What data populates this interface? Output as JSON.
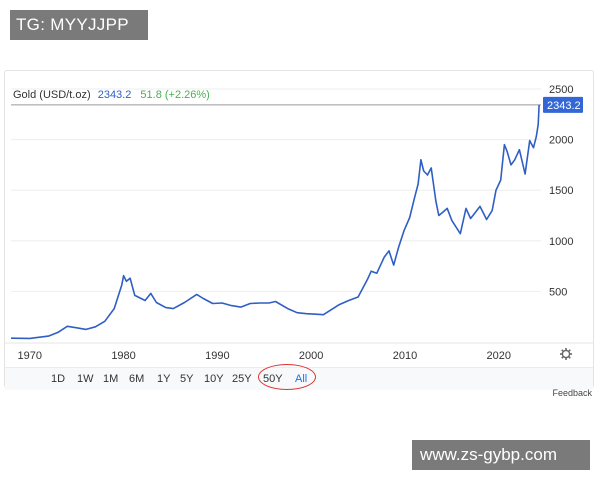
{
  "watermark_top": "TG: MYYJJPP",
  "watermark_bottom": "www.zs-gybp.com",
  "quote": {
    "name": "Gold (USD/t.oz)",
    "price": "2343.2",
    "change": "51.8 (+2.26%)"
  },
  "settings_icon": "gear-icon",
  "range_buttons": [
    "1D",
    "1W",
    "1M",
    "6M",
    "1Y",
    "5Y",
    "10Y",
    "25Y",
    "50Y",
    "All"
  ],
  "active_range": "All",
  "feedback_label": "Feedback",
  "colors": {
    "line": "#2f5fc4",
    "price_tag_bg": "#3367d6",
    "positive": "#4caf50",
    "highlight": "#dd3333"
  },
  "chart_data": {
    "type": "line",
    "title": "",
    "xlabel": "",
    "ylabel": "",
    "xlim": [
      1968,
      2024.5
    ],
    "ylim": [
      0,
      2500
    ],
    "x_ticks": [
      1970,
      1980,
      1990,
      2000,
      2010,
      2020
    ],
    "y_ticks": [
      500,
      1000,
      1500,
      2000,
      2500
    ],
    "y_axis_side": "right",
    "grid": "horizontal",
    "current_price_line": 2343.2,
    "current_price_label": "2343.2",
    "series": [
      {
        "x": [
          1968,
          1970,
          1972,
          1973,
          1974,
          1975,
          1976,
          1977,
          1978,
          1979,
          1979.8,
          1980.0,
          1980.3,
          1980.7,
          1981.2,
          1982.3,
          1982.9,
          1983.5,
          1984.5,
          1985.3,
          1986.5,
          1987.8,
          1988.5,
          1989.5,
          1990.5,
          1991.5,
          1992.5,
          1993.5,
          1994.5,
          1995.5,
          1996.2,
          1997.5,
          1998.5,
          1999.5,
          2000.5,
          2001.3,
          2002,
          2003,
          2004,
          2005,
          2006,
          2006.4,
          2007,
          2007.8,
          2008.3,
          2008.8,
          2009.3,
          2009.9,
          2010.5,
          2011.0,
          2011.4,
          2011.7,
          2012.0,
          2012.4,
          2012.8,
          2013.3,
          2013.6,
          2014.0,
          2014.5,
          2015.0,
          2015.9,
          2016.5,
          2017.0,
          2017.5,
          2018.0,
          2018.7,
          2019.3,
          2019.7,
          2020.2,
          2020.6,
          2020.9,
          2021.3,
          2021.7,
          2022.2,
          2022.8,
          2023.3,
          2023.7,
          2024.0,
          2024.2,
          2024.3
        ],
        "values": [
          38,
          36,
          58,
          95,
          155,
          140,
          125,
          150,
          205,
          330,
          560,
          655,
          600,
          630,
          460,
          410,
          480,
          390,
          340,
          330,
          390,
          470,
          430,
          380,
          385,
          360,
          345,
          380,
          385,
          385,
          400,
          330,
          290,
          280,
          275,
          270,
          310,
          370,
          410,
          445,
          620,
          700,
          680,
          840,
          900,
          760,
          930,
          1100,
          1230,
          1420,
          1560,
          1800,
          1690,
          1650,
          1720,
          1390,
          1250,
          1280,
          1320,
          1200,
          1070,
          1320,
          1220,
          1280,
          1340,
          1210,
          1300,
          1500,
          1600,
          1950,
          1880,
          1750,
          1800,
          1900,
          1660,
          1990,
          1920,
          2030,
          2150,
          2343
        ]
      }
    ]
  }
}
